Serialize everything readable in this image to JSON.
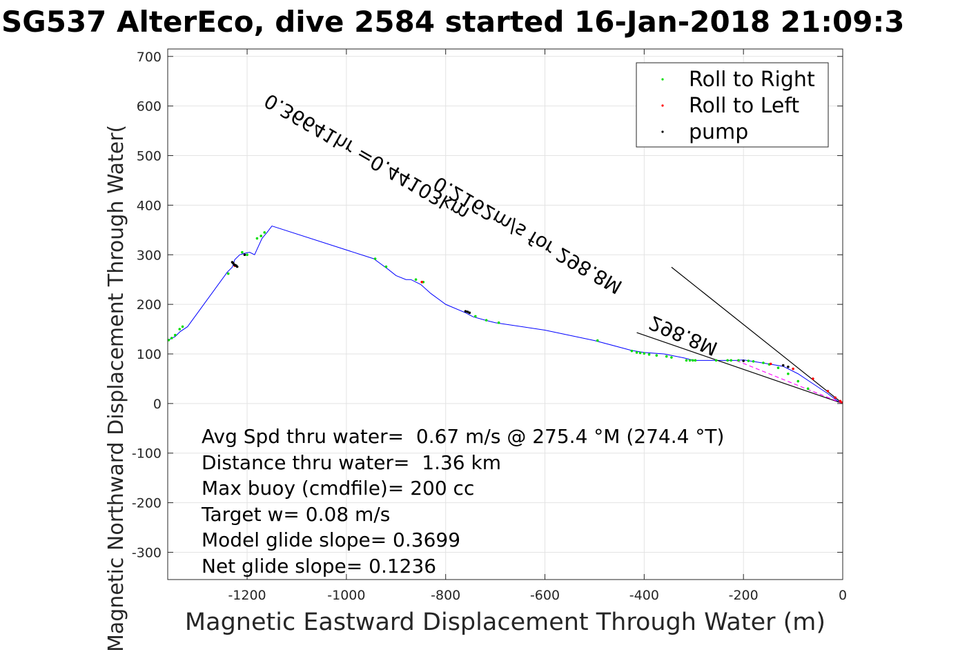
{
  "chart_data": {
    "type": "line",
    "title": "SG537 AlterEco, dive 2584 started 16-Jan-2018 21:09:3",
    "xlabel": "Magnetic Eastward Displacement Through Water (m)",
    "ylabel": "Magnetic Northward Displacement Through Water(",
    "xlim": [
      -1360,
      0
    ],
    "ylim": [
      -355,
      715
    ],
    "xticks": [
      -1200,
      -1000,
      -800,
      -600,
      -400,
      -200,
      0
    ],
    "xtick_labels": [
      "-1200",
      "-1000",
      "-800",
      "-600",
      "-400",
      "-200",
      "0"
    ],
    "yticks": [
      -300,
      -200,
      -100,
      0,
      100,
      200,
      300,
      400,
      500,
      600,
      700
    ],
    "ytick_labels": [
      "-300",
      "-200",
      "-100",
      "0",
      "100",
      "200",
      "300",
      "400",
      "500",
      "600",
      "700"
    ],
    "grid": true,
    "legend_position": "top-right",
    "legend": [
      {
        "label": "Roll to Right",
        "color": "#00dd00"
      },
      {
        "label": "Roll to Left",
        "color": "#ff0000"
      },
      {
        "label": "pump",
        "color": "#000000"
      }
    ],
    "track": {
      "color": "#0000ff",
      "x": [
        0,
        -10,
        -30,
        -60,
        -90,
        -120,
        -150,
        -200,
        -215,
        -240,
        -300,
        -320,
        -360,
        -400,
        -425,
        -500,
        -600,
        -700,
        -720,
        -745,
        -760,
        -800,
        -830,
        -850,
        -870,
        -880,
        -900,
        -915,
        -945,
        -1150,
        -1160,
        -1170,
        -1185,
        -1195,
        -1205,
        -1215,
        -1225,
        -1230,
        -1240,
        -1280,
        -1320,
        -1335,
        -1345,
        -1355,
        -1360
      ],
      "y": [
        0,
        5,
        20,
        40,
        60,
        75,
        80,
        88,
        87,
        87,
        87,
        92,
        100,
        103,
        107,
        127,
        148,
        163,
        168,
        175,
        183,
        200,
        222,
        240,
        250,
        250,
        258,
        270,
        292,
        358,
        345,
        333,
        300,
        305,
        303,
        300,
        290,
        275,
        265,
        210,
        155,
        145,
        135,
        130,
        128
      ]
    },
    "markers": {
      "roll_right": {
        "color": "#00dd00",
        "x": [
          -1358,
          -1352,
          -1345,
          -1336,
          -1330,
          -1238,
          -1210,
          -1200,
          -1180,
          -1172,
          -1165,
          -942,
          -920,
          -860,
          -845,
          -752,
          -740,
          -718,
          -693,
          -494,
          -425,
          -415,
          -408,
          -400,
          -390,
          -375,
          -355,
          -345,
          -315,
          -308,
          -302,
          -297,
          -255,
          -232,
          -225,
          -210,
          -190,
          -180,
          -160,
          -148,
          -130,
          -110,
          -90,
          -70
        ],
        "y": [
          128,
          132,
          138,
          150,
          155,
          262,
          305,
          300,
          333,
          338,
          345,
          292,
          276,
          250,
          245,
          183,
          176,
          168,
          163,
          127,
          106,
          103,
          102,
          101,
          99,
          97,
          95,
          93,
          87,
          87,
          87,
          87,
          87,
          87,
          87,
          87,
          86,
          85,
          82,
          79,
          72,
          60,
          45,
          30
        ]
      },
      "roll_left": {
        "color": "#ff0000",
        "x": [
          -1225,
          -848,
          -145,
          -100,
          -60,
          -30,
          -15,
          -5,
          -2
        ],
        "y": [
          278,
          245,
          80,
          70,
          50,
          25,
          12,
          5,
          2
        ]
      },
      "pump": {
        "color": "#000000",
        "x": [
          -1230,
          -1228,
          -1226,
          -1224,
          -1222,
          -1220,
          -1205,
          -760,
          -756,
          -752,
          -200,
          -120,
          -110
        ],
        "y": [
          285,
          283,
          280,
          279,
          278,
          276,
          300,
          186,
          185,
          183,
          86,
          77,
          74
        ]
      }
    },
    "heading_lines": {
      "color": "#000000",
      "lines": [
        {
          "x": [
            0,
            -345
          ],
          "y": [
            0,
            275
          ]
        },
        {
          "x": [
            0,
            -415
          ],
          "y": [
            0,
            143
          ]
        }
      ],
      "magenta_x": [
        0,
        -215
      ],
      "magenta_y": [
        0,
        87
      ]
    },
    "annotations": {
      "diag_text_1": "0.36641hr =0.44103km",
      "diag_text_2": "0.2162m/s for 298.8M",
      "diag_text_3": "298.8M"
    },
    "stats": [
      "Avg Spd thru water=  0.67 m/s @ 275.4 °M (274.4 °T)",
      "Distance thru water=  1.36 km",
      "Max buoy (cmdfile)= 200 cc",
      "Target w= 0.08 m/s",
      "Model glide slope= 0.3699",
      "Net glide slope= 0.1236"
    ]
  }
}
